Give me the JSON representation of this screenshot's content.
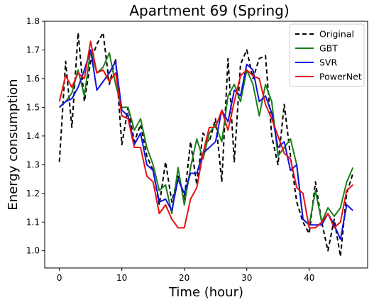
{
  "chart_data": {
    "type": "line",
    "title": "Apartment 69 (Spring)",
    "xlabel": "Time (hour)",
    "ylabel": "Energy consumption",
    "xlim": [
      -2.35,
      49.35
    ],
    "ylim": [
      0.94,
      1.8
    ],
    "xticks": [
      0,
      10,
      20,
      30,
      40
    ],
    "yticks": [
      1.0,
      1.1,
      1.2,
      1.3,
      1.4,
      1.5,
      1.6,
      1.7,
      1.8
    ],
    "grid": false,
    "legend_position": "top-right",
    "x": [
      0,
      1,
      2,
      3,
      4,
      5,
      6,
      7,
      8,
      9,
      10,
      11,
      12,
      13,
      14,
      15,
      16,
      17,
      18,
      19,
      20,
      21,
      22,
      23,
      24,
      25,
      26,
      27,
      28,
      29,
      30,
      31,
      32,
      33,
      34,
      35,
      36,
      37,
      38,
      39,
      40,
      41,
      42,
      43,
      44,
      45,
      46,
      47
    ],
    "series": [
      {
        "name": "Original",
        "color": "#000000",
        "dash": "dashed",
        "values": [
          1.31,
          1.66,
          1.43,
          1.76,
          1.52,
          1.66,
          1.72,
          1.76,
          1.58,
          1.67,
          1.37,
          1.5,
          1.38,
          1.44,
          1.33,
          1.28,
          1.16,
          1.31,
          1.17,
          1.26,
          1.18,
          1.38,
          1.23,
          1.41,
          1.38,
          1.46,
          1.24,
          1.67,
          1.31,
          1.65,
          1.7,
          1.6,
          1.67,
          1.68,
          1.4,
          1.3,
          1.51,
          1.33,
          1.17,
          1.1,
          1.06,
          1.24,
          1.1,
          1.0,
          1.11,
          0.98,
          1.2,
          1.27
        ]
      },
      {
        "name": "GBT",
        "color": "#1a7f1a",
        "dash": "solid",
        "values": [
          1.5,
          1.52,
          1.55,
          1.63,
          1.54,
          1.7,
          1.62,
          1.64,
          1.69,
          1.58,
          1.5,
          1.5,
          1.42,
          1.46,
          1.36,
          1.3,
          1.21,
          1.23,
          1.13,
          1.29,
          1.16,
          1.29,
          1.39,
          1.32,
          1.41,
          1.44,
          1.38,
          1.54,
          1.58,
          1.52,
          1.63,
          1.58,
          1.47,
          1.58,
          1.52,
          1.33,
          1.36,
          1.39,
          1.3,
          1.11,
          1.09,
          1.21,
          1.1,
          1.15,
          1.12,
          1.15,
          1.24,
          1.29
        ]
      },
      {
        "name": "SVR",
        "color": "#1010e0",
        "dash": "solid",
        "values": [
          1.5,
          1.52,
          1.53,
          1.57,
          1.63,
          1.7,
          1.56,
          1.59,
          1.62,
          1.66,
          1.49,
          1.47,
          1.37,
          1.41,
          1.3,
          1.28,
          1.17,
          1.18,
          1.14,
          1.25,
          1.2,
          1.27,
          1.27,
          1.34,
          1.36,
          1.38,
          1.49,
          1.45,
          1.56,
          1.54,
          1.65,
          1.63,
          1.52,
          1.54,
          1.48,
          1.36,
          1.38,
          1.28,
          1.3,
          1.11,
          1.09,
          1.09,
          1.09,
          1.13,
          1.09,
          1.04,
          1.16,
          1.14
        ]
      },
      {
        "name": "PowerNet",
        "color": "#e81010",
        "dash": "solid",
        "values": [
          1.52,
          1.61,
          1.57,
          1.62,
          1.6,
          1.73,
          1.62,
          1.63,
          1.59,
          1.62,
          1.47,
          1.46,
          1.36,
          1.36,
          1.26,
          1.24,
          1.13,
          1.16,
          1.11,
          1.08,
          1.08,
          1.18,
          1.22,
          1.34,
          1.43,
          1.43,
          1.49,
          1.42,
          1.52,
          1.61,
          1.63,
          1.61,
          1.6,
          1.51,
          1.46,
          1.4,
          1.34,
          1.32,
          1.22,
          1.2,
          1.08,
          1.08,
          1.1,
          1.13,
          1.08,
          1.1,
          1.21,
          1.23
        ]
      }
    ]
  }
}
